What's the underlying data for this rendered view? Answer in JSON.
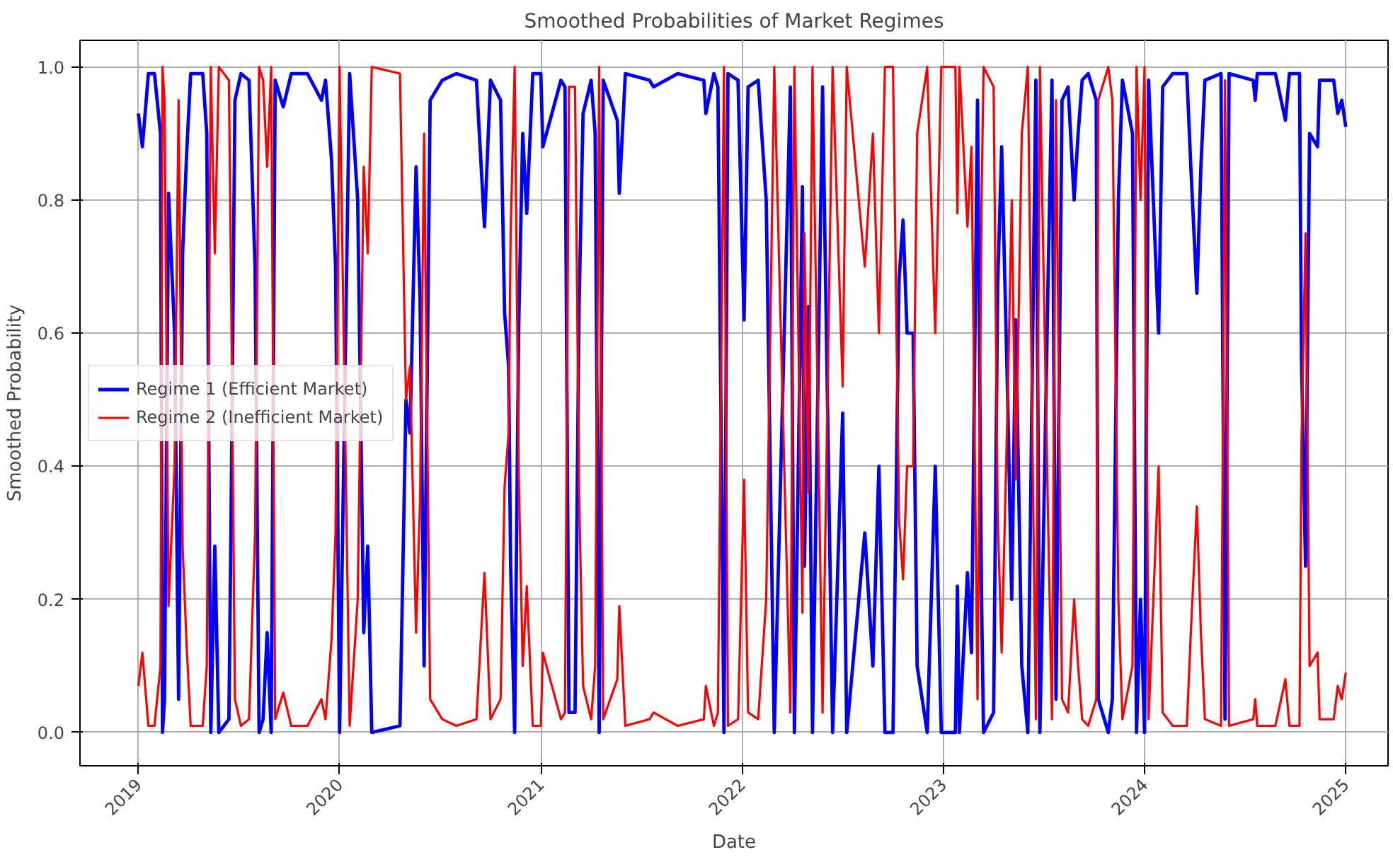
{
  "chart_data": {
    "type": "line",
    "title": "Smoothed Probabilities of Market Regimes",
    "xlabel": "Date",
    "ylabel": "Smoothed Probability",
    "x": [
      2019.0,
      2019.02,
      2019.05,
      2019.08,
      2019.11,
      2019.12,
      2019.13,
      2019.15,
      2019.18,
      2019.2,
      2019.22,
      2019.24,
      2019.26,
      2019.32,
      2019.34,
      2019.36,
      2019.38,
      2019.4,
      2019.45,
      2019.46,
      2019.48,
      2019.51,
      2019.55,
      2019.58,
      2019.6,
      2019.62,
      2019.64,
      2019.66,
      2019.68,
      2019.72,
      2019.76,
      2019.84,
      2019.91,
      2019.93,
      2019.96,
      2019.98,
      2020.0,
      2020.05,
      2020.09,
      2020.12,
      2020.14,
      2020.16,
      2020.3,
      2020.33,
      2020.35,
      2020.38,
      2020.4,
      2020.42,
      2020.45,
      2020.51,
      2020.58,
      2020.68,
      2020.72,
      2020.75,
      2020.8,
      2020.82,
      2020.84,
      2020.85,
      2020.87,
      2020.89,
      2020.91,
      2020.93,
      2020.96,
      2021.0,
      2021.01,
      2021.1,
      2021.12,
      2021.14,
      2021.17,
      2021.19,
      2021.21,
      2021.25,
      2021.27,
      2021.29,
      2021.31,
      2021.38,
      2021.39,
      2021.42,
      2021.54,
      2021.56,
      2021.68,
      2021.81,
      2021.82,
      2021.86,
      2021.88,
      2021.91,
      2021.93,
      2021.98,
      2022.01,
      2022.03,
      2022.08,
      2022.12,
      2022.16,
      2022.24,
      2022.26,
      2022.3,
      2022.31,
      2022.33,
      2022.35,
      2022.4,
      2022.45,
      2022.5,
      2022.52,
      2022.61,
      2022.65,
      2022.68,
      2022.71,
      2022.75,
      2022.78,
      2022.8,
      2022.82,
      2022.85,
      2022.87,
      2022.92,
      2022.96,
      2022.99,
      2023.06,
      2023.07,
      2023.08,
      2023.12,
      2023.14,
      2023.17,
      2023.19,
      2023.2,
      2023.25,
      2023.27,
      2023.29,
      2023.32,
      2023.34,
      2023.36,
      2023.39,
      2023.42,
      2023.46,
      2023.48,
      2023.52,
      2023.54,
      2023.56,
      2023.59,
      2023.62,
      2023.65,
      2023.67,
      2023.69,
      2023.72,
      2023.76,
      2023.77,
      2023.82,
      2023.84,
      2023.87,
      2023.89,
      2023.94,
      2023.96,
      2023.98,
      2024.0,
      2024.02,
      2024.07,
      2024.09,
      2024.14,
      2024.21,
      2024.23,
      2024.26,
      2024.28,
      2024.3,
      2024.38,
      2024.4,
      2024.42,
      2024.54,
      2024.55,
      2024.56,
      2024.65,
      2024.7,
      2024.72,
      2024.77,
      2024.78,
      2024.8,
      2024.82,
      2024.86,
      2024.87,
      2024.94,
      2024.96,
      2024.98,
      2025.0
    ],
    "series": [
      {
        "name": "Regime 1 (Efficient Market)",
        "color": "#0000ff",
        "values": [
          0.93,
          0.88,
          0.99,
          0.99,
          0.9,
          0.0,
          0.05,
          0.81,
          0.6,
          0.05,
          0.72,
          0.87,
          0.99,
          0.99,
          0.9,
          0.0,
          0.28,
          0.0,
          0.02,
          0.3,
          0.95,
          0.99,
          0.98,
          0.7,
          0.0,
          0.02,
          0.15,
          0.0,
          0.98,
          0.94,
          0.99,
          0.99,
          0.95,
          0.98,
          0.86,
          0.7,
          0.0,
          0.99,
          0.8,
          0.15,
          0.28,
          0.0,
          0.01,
          0.5,
          0.45,
          0.85,
          0.65,
          0.1,
          0.95,
          0.98,
          0.99,
          0.98,
          0.76,
          0.98,
          0.95,
          0.63,
          0.55,
          0.25,
          0.0,
          0.61,
          0.9,
          0.78,
          0.99,
          0.99,
          0.88,
          0.98,
          0.97,
          0.03,
          0.03,
          0.64,
          0.93,
          0.98,
          0.9,
          0.0,
          0.98,
          0.92,
          0.81,
          0.99,
          0.98,
          0.97,
          0.99,
          0.98,
          0.93,
          0.99,
          0.97,
          0.0,
          0.99,
          0.98,
          0.62,
          0.97,
          0.98,
          0.8,
          0.0,
          0.97,
          0.0,
          0.82,
          0.25,
          0.64,
          0.0,
          0.97,
          0.0,
          0.48,
          0.0,
          0.3,
          0.1,
          0.4,
          0.0,
          0.0,
          0.68,
          0.77,
          0.6,
          0.6,
          0.1,
          0.0,
          0.4,
          0.0,
          0.0,
          0.22,
          0.0,
          0.24,
          0.12,
          0.95,
          0.2,
          0.0,
          0.03,
          0.67,
          0.88,
          0.5,
          0.2,
          0.62,
          0.1,
          0.0,
          0.98,
          0.0,
          0.67,
          0.98,
          0.05,
          0.95,
          0.97,
          0.8,
          0.9,
          0.98,
          0.99,
          0.95,
          0.05,
          0.0,
          0.05,
          0.8,
          0.98,
          0.9,
          0.0,
          0.2,
          0.0,
          0.98,
          0.6,
          0.97,
          0.99,
          0.99,
          0.85,
          0.66,
          0.85,
          0.98,
          0.99,
          0.02,
          0.99,
          0.98,
          0.95,
          0.99,
          0.99,
          0.92,
          0.99,
          0.99,
          0.56,
          0.25,
          0.9,
          0.88,
          0.98,
          0.98,
          0.93,
          0.95,
          0.91
        ]
      },
      {
        "name": "Regime 2 (Inefficient Market)",
        "color": "#ff0000",
        "values": [
          0.07,
          0.12,
          0.01,
          0.01,
          0.1,
          1.0,
          0.95,
          0.19,
          0.4,
          0.95,
          0.28,
          0.13,
          0.01,
          0.01,
          0.1,
          1.0,
          0.72,
          1.0,
          0.98,
          0.7,
          0.05,
          0.01,
          0.02,
          0.3,
          1.0,
          0.98,
          0.85,
          1.0,
          0.02,
          0.06,
          0.01,
          0.01,
          0.05,
          0.02,
          0.14,
          0.3,
          1.0,
          0.01,
          0.2,
          0.85,
          0.72,
          1.0,
          0.99,
          0.5,
          0.55,
          0.15,
          0.35,
          0.9,
          0.05,
          0.02,
          0.01,
          0.02,
          0.24,
          0.02,
          0.05,
          0.37,
          0.45,
          0.75,
          1.0,
          0.39,
          0.1,
          0.22,
          0.01,
          0.01,
          0.12,
          0.02,
          0.03,
          0.97,
          0.97,
          0.36,
          0.07,
          0.02,
          0.1,
          1.0,
          0.02,
          0.08,
          0.19,
          0.01,
          0.02,
          0.03,
          0.01,
          0.02,
          0.07,
          0.01,
          0.03,
          1.0,
          0.01,
          0.02,
          0.38,
          0.03,
          0.02,
          0.2,
          1.0,
          0.03,
          1.0,
          0.18,
          0.75,
          0.36,
          1.0,
          0.03,
          1.0,
          0.52,
          1.0,
          0.7,
          0.9,
          0.6,
          1.0,
          1.0,
          0.32,
          0.23,
          0.4,
          0.4,
          0.9,
          1.0,
          0.6,
          1.0,
          1.0,
          0.78,
          1.0,
          0.76,
          0.88,
          0.05,
          0.8,
          1.0,
          0.97,
          0.33,
          0.12,
          0.5,
          0.8,
          0.38,
          0.9,
          1.0,
          0.02,
          1.0,
          0.33,
          0.02,
          0.95,
          0.05,
          0.03,
          0.2,
          0.1,
          0.02,
          0.01,
          0.05,
          0.95,
          1.0,
          0.95,
          0.2,
          0.02,
          0.1,
          1.0,
          0.8,
          1.0,
          0.02,
          0.4,
          0.03,
          0.01,
          0.01,
          0.15,
          0.34,
          0.15,
          0.02,
          0.01,
          0.98,
          0.01,
          0.02,
          0.05,
          0.01,
          0.01,
          0.08,
          0.01,
          0.01,
          0.44,
          0.75,
          0.1,
          0.12,
          0.02,
          0.02,
          0.07,
          0.05,
          0.09
        ]
      }
    ],
    "xlim": [
      2018.71,
      2025.21
    ],
    "xticks": [
      2019,
      2020,
      2021,
      2022,
      2023,
      2024,
      2025
    ],
    "ylim": [
      -0.05,
      1.04
    ],
    "yticks": [
      {
        "value": 0,
        "label": "0.0"
      },
      {
        "value": 0.2,
        "label": "0.2"
      },
      {
        "value": 0.4,
        "label": "0.4"
      },
      {
        "value": 0.6,
        "label": "0.6"
      },
      {
        "value": 0.8,
        "label": "0.8"
      },
      {
        "value": 1,
        "label": "1.0"
      }
    ],
    "grid": true,
    "legend": "left",
    "marker": "none",
    "line_style": "solid"
  }
}
